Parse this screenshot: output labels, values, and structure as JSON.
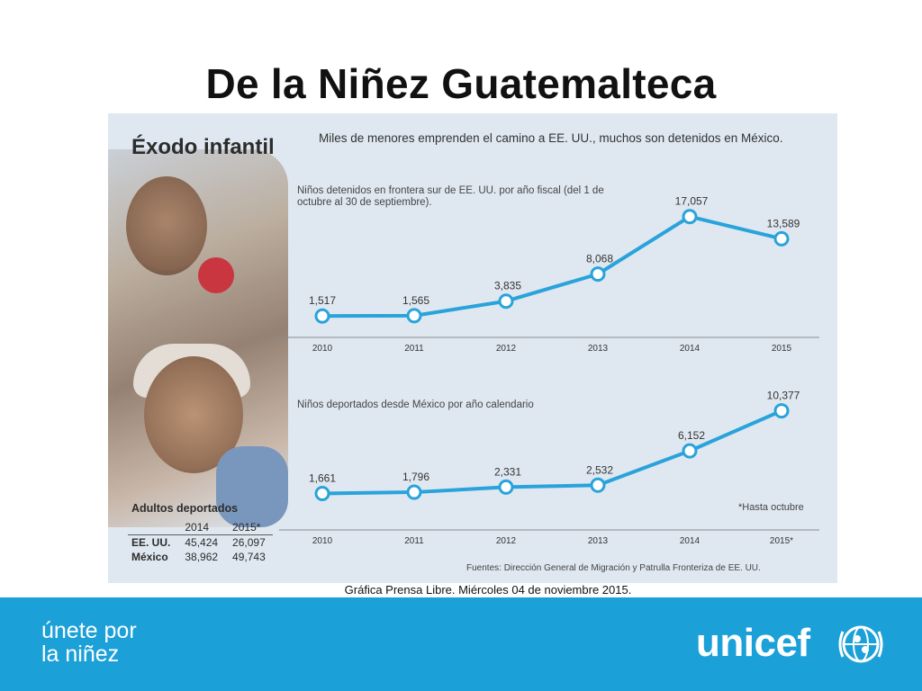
{
  "slide": {
    "title": "De la Niñez Guatemalteca",
    "caption": "Gráfica Prensa Libre. Miércoles 04 de noviembre 2015."
  },
  "infographic": {
    "title": "Éxodo infantil",
    "headline": "Miles de menores emprenden el camino a EE. UU., muchos son detenidos en México.",
    "note": "*Hasta octubre",
    "sources": "Fuentes: Dirección General de Migración y Patrulla Fronteriza de EE. UU.",
    "table": {
      "title": "Adultos deportados",
      "columns": [
        "",
        "2014",
        "2015*"
      ],
      "rows": [
        [
          "EE. UU.",
          "45,424",
          "26,097"
        ],
        [
          "México",
          "38,962",
          "49,743"
        ]
      ]
    }
  },
  "chart_data": [
    {
      "type": "line",
      "title": "Niños detenidos en frontera sur de EE. UU. por año fiscal (del 1 de octubre al 30 de septiembre).",
      "x": [
        "2010",
        "2011",
        "2012",
        "2013",
        "2014",
        "2015"
      ],
      "values": [
        1517,
        1565,
        3835,
        8068,
        17057,
        13589
      ],
      "labels": [
        "1,517",
        "1,565",
        "3,835",
        "8,068",
        "17,057",
        "13,589"
      ],
      "color": "#29a3da",
      "ylim": [
        0,
        18000
      ]
    },
    {
      "type": "line",
      "title": "Niños deportados desde México por año calendario",
      "x": [
        "2010",
        "2011",
        "2012",
        "2013",
        "2014",
        "2015*"
      ],
      "values": [
        1661,
        1796,
        2331,
        2532,
        6152,
        10377
      ],
      "labels": [
        "1,661",
        "1,796",
        "2,331",
        "2,532",
        "6,152",
        "10,377"
      ],
      "color": "#29a3da",
      "ylim": [
        0,
        11000
      ]
    }
  ],
  "footer": {
    "slogan_line1": "únete por",
    "slogan_line2": "la niñez",
    "brand": "unicef",
    "background": "#1ca0d8"
  }
}
